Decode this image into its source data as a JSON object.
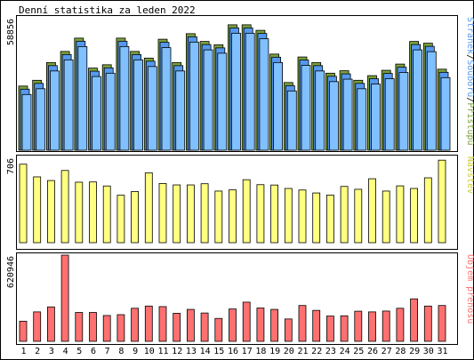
{
  "chart_data": {
    "type": "bar",
    "title": "Denní statistika za leden 2022",
    "categories": [
      "1",
      "2",
      "3",
      "4",
      "5",
      "6",
      "7",
      "8",
      "9",
      "10",
      "11",
      "12",
      "13",
      "14",
      "15",
      "16",
      "17",
      "18",
      "19",
      "20",
      "21",
      "22",
      "23",
      "24",
      "25",
      "26",
      "27",
      "28",
      "29",
      "30",
      "31"
    ],
    "weekend_days": [
      "1",
      "2",
      "8",
      "9",
      "15",
      "16",
      "22",
      "23",
      "29",
      "30"
    ],
    "colors": {
      "pages": "#80c0ff",
      "files": "#5599ee",
      "hits": "#7aa03c",
      "visits": "#ffff80",
      "bytes": "#ff7070",
      "weekday_label": "#000000",
      "weekend_label": "#33aa00",
      "frame": "#000000",
      "pages_label": "#5599ee",
      "files_label": "#5599ee",
      "hits_label": "#7aa03c",
      "visits_label": "#cccc33",
      "bytes_label": "#ff7070"
    },
    "panels": [
      {
        "name": "requests",
        "max_label": "58856",
        "ymax": 58856,
        "right_labels": [
          {
            "text": "Stránek",
            "color_key": "pages_label"
          },
          {
            "text": "/",
            "color_key": "weekday_label"
          },
          {
            "text": "Souborů",
            "color_key": "files_label"
          },
          {
            "text": "/",
            "color_key": "weekday_label"
          },
          {
            "text": "Přístupů",
            "color_key": "hits_label"
          }
        ],
        "series": [
          {
            "name": "Přístupů",
            "key": "hits",
            "values": [
              28900,
              31500,
              39500,
              44500,
              50500,
              37000,
              38500,
              50500,
              44500,
              41500,
              50000,
              39500,
              52500,
              49000,
              47500,
              56500,
              56500,
              54000,
              43300,
              30500,
              42000,
              39500,
              34700,
              35800,
              31500,
              33600,
              36000,
              38800,
              49000,
              48200,
              36500
            ]
          },
          {
            "name": "Souborů",
            "key": "files",
            "values": [
              28300,
              30900,
              38900,
              43900,
              49900,
              36400,
              37900,
              49900,
              43900,
              40900,
              49400,
              38900,
              51900,
              48400,
              46900,
              55900,
              55900,
              53400,
              42700,
              29900,
              41400,
              38900,
              34100,
              35200,
              30900,
              33000,
              35400,
              38200,
              48400,
              47600,
              35900
            ]
          },
          {
            "name": "Stránek",
            "key": "pages",
            "values": [
              26700,
              29300,
              37300,
              42300,
              48300,
              34800,
              36300,
              48300,
              42300,
              39300,
              47800,
              37300,
              50300,
              46800,
              45300,
              54300,
              54300,
              51800,
              41100,
              28300,
              39800,
              37300,
              32500,
              33600,
              29300,
              31400,
              33800,
              36600,
              46800,
              46000,
              34300
            ]
          }
        ]
      },
      {
        "name": "visits",
        "max_label": "706",
        "ymax": 706,
        "right_labels": [
          {
            "text": "Návštěv",
            "color_key": "visits_label"
          }
        ],
        "series": [
          {
            "name": "Návštěv",
            "key": "visits",
            "values": [
              663,
              556,
              525,
              610,
              511,
              513,
              479,
              401,
              432,
              590,
              500,
              488,
              488,
              498,
              436,
              446,
              532,
              490,
              487,
              458,
              445,
              420,
              402,
              475,
              451,
              540,
              436,
              480,
              458,
              548,
              697
            ]
          }
        ]
      },
      {
        "name": "bytes",
        "max_label": "620946",
        "ymax": 620946,
        "right_labels": [
          {
            "text": "Objem přenosu",
            "color_key": "bytes_label"
          }
        ],
        "series": [
          {
            "name": "Objem přenosu",
            "key": "bytes",
            "values": [
              145000,
              212000,
              248000,
              620946,
              208000,
              208000,
              186000,
              192000,
              238000,
              254000,
              250000,
              202000,
              230000,
              204000,
              165000,
              233000,
              282000,
              240000,
              230000,
              161000,
              258000,
              223000,
              182000,
              184000,
              217000,
              212000,
              218000,
              238000,
              306000,
              254000,
              258000
            ]
          }
        ]
      }
    ]
  }
}
